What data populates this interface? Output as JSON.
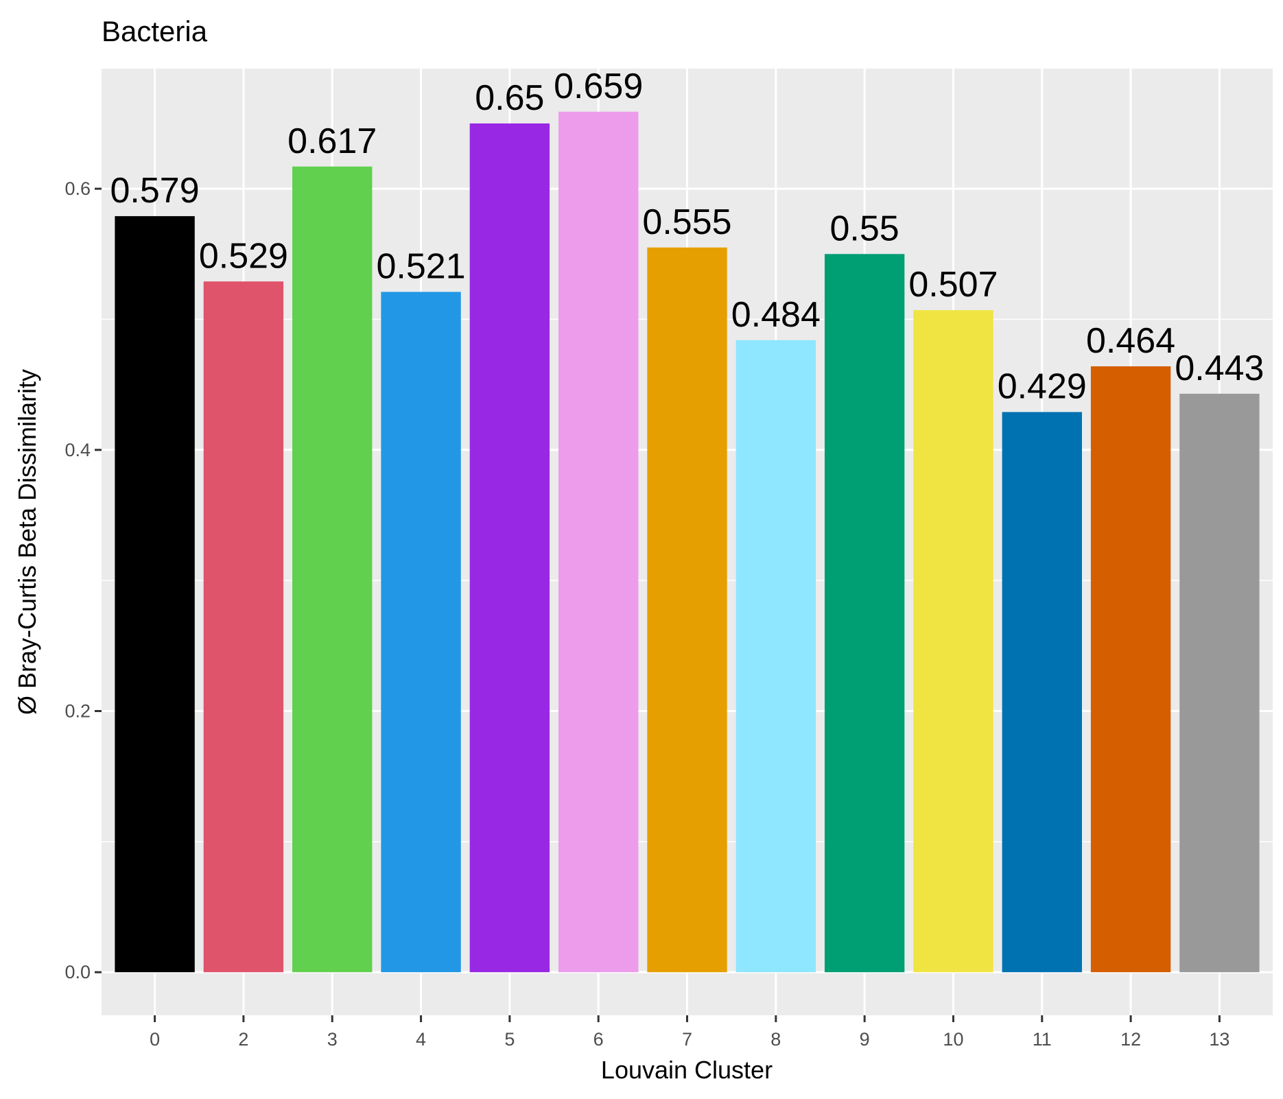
{
  "chart_data": {
    "type": "bar",
    "title": "Bacteria",
    "xlabel": "Louvain Cluster",
    "ylabel": "Ø Bray-Curtis Beta Dissimilarity",
    "categories": [
      "0",
      "2",
      "3",
      "4",
      "5",
      "6",
      "7",
      "8",
      "9",
      "10",
      "11",
      "12",
      "13"
    ],
    "values": [
      0.579,
      0.529,
      0.617,
      0.521,
      0.65,
      0.659,
      0.555,
      0.484,
      0.55,
      0.507,
      0.429,
      0.464,
      0.443
    ],
    "value_labels": [
      "0.579",
      "0.529",
      "0.617",
      "0.521",
      "0.65",
      "0.659",
      "0.555",
      "0.484",
      "0.55",
      "0.507",
      "0.429",
      "0.464",
      "0.443"
    ],
    "colors": [
      "#000000",
      "#DF536B",
      "#61D04F",
      "#2297E6",
      "#9928E5",
      "#ED9CEC",
      "#E69F00",
      "#8FE6FF",
      "#009E73",
      "#F0E442",
      "#0072B2",
      "#D55E00",
      "#999999"
    ],
    "ylim": [
      -0.033,
      0.692
    ],
    "yticks": [
      0.0,
      0.2,
      0.4,
      0.6
    ],
    "ytick_labels": [
      "0.0",
      "0.2",
      "0.4",
      "0.6"
    ],
    "panel_background": "#EBEBEB",
    "grid_color": "#FFFFFF",
    "grid": true,
    "legend": "none"
  }
}
